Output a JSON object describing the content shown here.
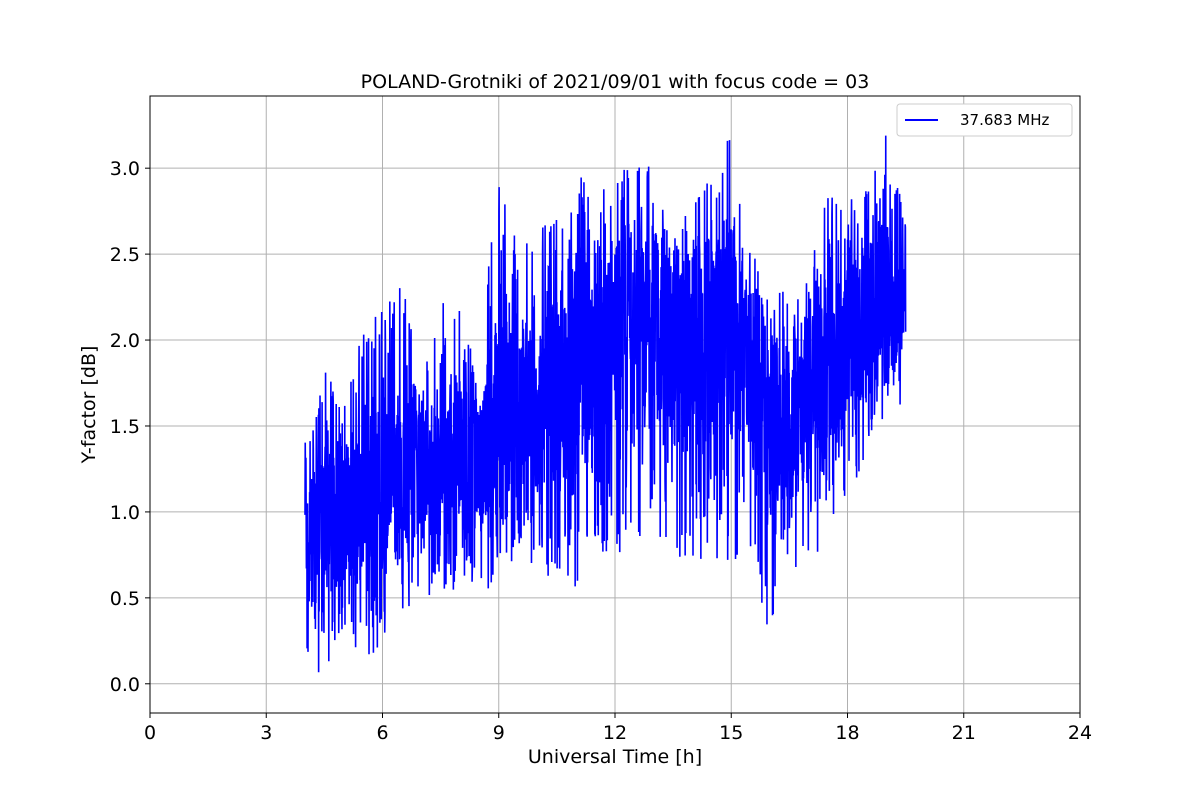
{
  "chart_data": {
    "type": "line",
    "title": "POLAND-Grotniki of 2021/09/01 with focus code = 03",
    "xlabel": "Universal Time [h]",
    "ylabel": "Y-factor [dB]",
    "xlim": [
      0,
      24
    ],
    "ylim": [
      -0.17,
      3.42
    ],
    "xticks": [
      0,
      3,
      6,
      9,
      12,
      15,
      18,
      21,
      24
    ],
    "yticks": [
      0.0,
      0.5,
      1.0,
      1.5,
      2.0,
      2.5,
      3.0
    ],
    "xtick_labels": [
      "0",
      "3",
      "6",
      "9",
      "12",
      "15",
      "18",
      "21",
      "24"
    ],
    "ytick_labels": [
      "0.0",
      "0.5",
      "1.0",
      "1.5",
      "2.0",
      "2.5",
      "3.0"
    ],
    "grid": true,
    "legend": "top-right",
    "series": [
      {
        "name": "37.683 MHz",
        "color": "#0000ff",
        "x_range": [
          4.0,
          19.5
        ],
        "envelope": {
          "x": [
            4.0,
            4.5,
            5.0,
            5.5,
            6.0,
            6.5,
            7.0,
            7.5,
            8.0,
            8.5,
            9.0,
            9.5,
            10.0,
            10.5,
            11.0,
            11.5,
            12.0,
            12.5,
            13.0,
            13.5,
            14.0,
            14.5,
            15.0,
            15.5,
            16.0,
            16.5,
            17.0,
            17.5,
            18.0,
            18.5,
            19.0,
            19.5
          ],
          "upper": [
            1.4,
            1.85,
            1.6,
            2.15,
            2.2,
            2.45,
            1.75,
            2.25,
            2.2,
            2.0,
            3.0,
            2.6,
            2.65,
            2.7,
            2.95,
            2.95,
            3.05,
            3.0,
            3.05,
            2.6,
            2.8,
            2.95,
            3.25,
            2.55,
            2.25,
            2.3,
            2.45,
            2.9,
            2.8,
            2.9,
            3.2,
            2.7
          ],
          "lower": [
            0.1,
            0.05,
            0.15,
            0.2,
            0.1,
            0.4,
            0.45,
            0.5,
            0.55,
            0.5,
            0.6,
            0.7,
            0.65,
            0.6,
            0.55,
            0.75,
            0.7,
            0.65,
            1.0,
            0.55,
            0.7,
            0.75,
            0.65,
            0.7,
            0.2,
            0.75,
            0.5,
            0.95,
            1.05,
            1.3,
            1.45,
            1.6
          ],
          "mid": [
            0.8,
            0.9,
            1.0,
            1.1,
            1.15,
            1.25,
            1.25,
            1.3,
            1.35,
            1.3,
            1.5,
            1.55,
            1.6,
            1.7,
            1.9,
            1.95,
            2.0,
            1.95,
            2.15,
            1.9,
            2.0,
            2.0,
            2.05,
            1.8,
            1.5,
            1.6,
            1.7,
            1.9,
            2.0,
            2.1,
            2.2,
            2.2
          ]
        }
      }
    ]
  }
}
